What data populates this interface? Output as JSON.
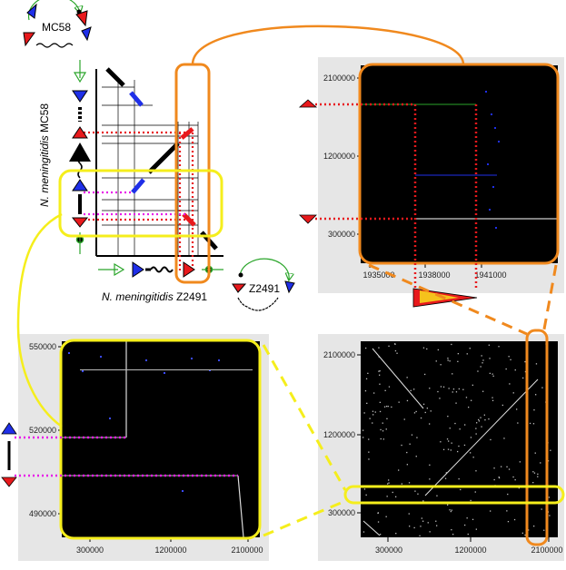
{
  "labels": {
    "mc58_circle": "MC58",
    "z2491_circle": "Z2491",
    "y_axis_species": "N. meningitidis",
    "y_axis_strain": " MC58",
    "x_axis_species": "N. meningitidis",
    "x_axis_strain": " Z2491"
  },
  "panels": {
    "top_right": {
      "yticks": [
        "2100000",
        "1200000",
        "300000"
      ],
      "xticks": [
        "1935000",
        "1938000",
        "1941000"
      ]
    },
    "bottom_left": {
      "yticks": [
        "550000",
        "520000",
        "490000"
      ],
      "xticks": [
        "300000",
        "1200000",
        "2100000"
      ]
    },
    "bottom_right": {
      "yticks": [
        "2100000",
        "1200000",
        "300000"
      ],
      "xticks": [
        "300000",
        "1200000",
        "2100000"
      ]
    }
  },
  "colors": {
    "orange": "#f0891e",
    "yellow": "#f5ee1c",
    "red": "#e8191c",
    "blue": "#1f2fe8",
    "magenta": "#e81ce8",
    "green": "#2aa52a"
  }
}
